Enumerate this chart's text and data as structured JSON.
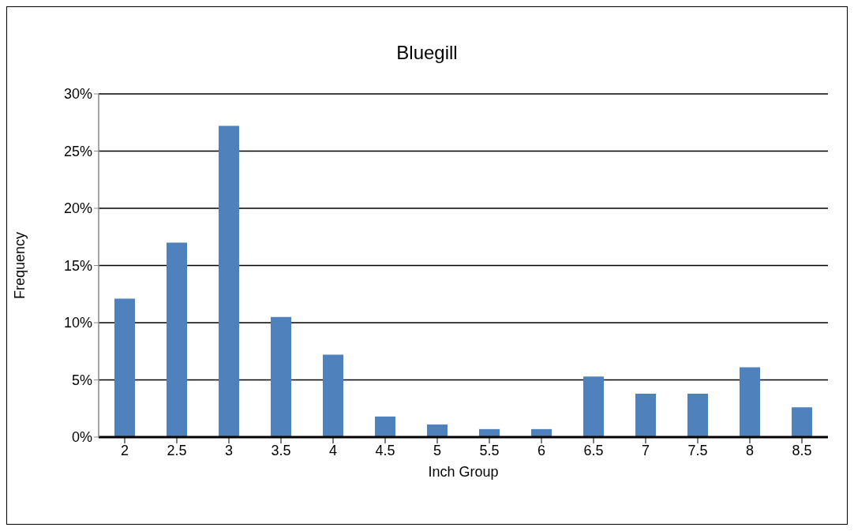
{
  "chart_data": {
    "type": "bar",
    "title": "Bluegill",
    "xlabel": "Inch Group",
    "ylabel": "Frequency",
    "categories": [
      "2",
      "2.5",
      "3",
      "3.5",
      "4",
      "4.5",
      "5",
      "5.5",
      "6",
      "6.5",
      "7",
      "7.5",
      "8",
      "8.5"
    ],
    "values": [
      12.1,
      17.0,
      27.2,
      10.5,
      7.2,
      1.8,
      1.1,
      0.7,
      0.7,
      5.3,
      3.8,
      3.8,
      6.1,
      2.6
    ],
    "color": "#4f81bd",
    "ylim": [
      0,
      30
    ],
    "yticks": [
      {
        "value": 0,
        "label": "0%"
      },
      {
        "value": 5,
        "label": "5%"
      },
      {
        "value": 10,
        "label": "10%"
      },
      {
        "value": 15,
        "label": "15%"
      },
      {
        "value": 20,
        "label": "20%"
      },
      {
        "value": 25,
        "label": "25%"
      },
      {
        "value": 30,
        "label": "30%"
      }
    ],
    "grid": "y"
  }
}
